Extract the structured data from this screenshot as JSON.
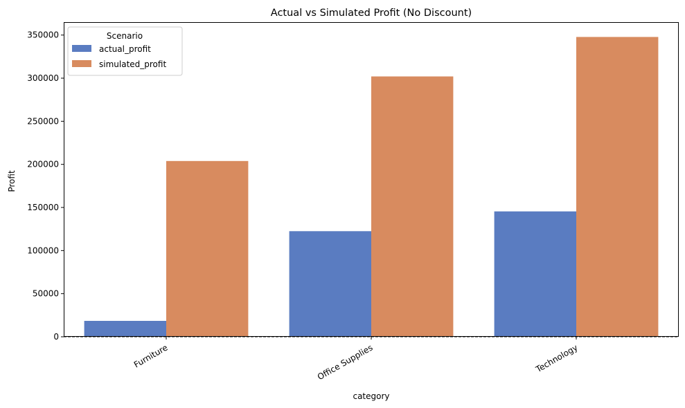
{
  "chart_data": {
    "type": "bar",
    "title": "Actual vs Simulated Profit (No Discount)",
    "xlabel": "category",
    "ylabel": "Profit",
    "categories": [
      "Furniture",
      "Office Supplies",
      "Technology"
    ],
    "series": [
      {
        "name": "actual_profit",
        "values": [
          18450,
          122500,
          145450
        ],
        "color": "#5a7cc1"
      },
      {
        "name": "simulated_profit",
        "values": [
          203900,
          302000,
          347800
        ],
        "color": "#d88b5f"
      }
    ],
    "ylim": [
      0,
      365000
    ],
    "yticks": [
      0,
      50000,
      100000,
      150000,
      200000,
      250000,
      300000,
      350000
    ],
    "ytick_labels": [
      "0",
      "50000",
      "100000",
      "150000",
      "200000",
      "250000",
      "300000",
      "350000"
    ],
    "legend": {
      "title": "Scenario",
      "placement": "top-left"
    },
    "grid": false,
    "reference_line": {
      "y": 0,
      "style": "dashed",
      "color": "#000000"
    }
  }
}
